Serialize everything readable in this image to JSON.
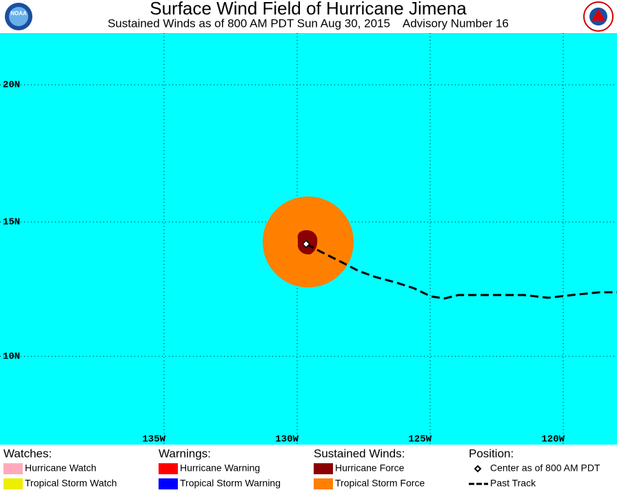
{
  "header": {
    "title": "Surface Wind Field of Hurricane Jimena",
    "subtitle": "Sustained Winds as of 800 AM PDT Sun Aug 30, 2015    Advisory Number 16",
    "logo_left": "NOAA"
  },
  "map": {
    "lat_labels": [
      "20N",
      "15N",
      "10N"
    ],
    "lon_labels": [
      "135W",
      "130W",
      "125W",
      "120W"
    ]
  },
  "legend": {
    "watches": {
      "heading": "Watches:",
      "items": [
        "Hurricane Watch",
        "Tropical Storm Watch"
      ]
    },
    "warnings": {
      "heading": "Warnings:",
      "items": [
        "Hurricane Warning",
        "Tropical Storm Warning"
      ]
    },
    "winds": {
      "heading": "Sustained Winds:",
      "items": [
        "Hurricane Force",
        "Tropical Storm Force"
      ]
    },
    "position": {
      "heading": "Position:",
      "items": [
        "Center as of 800 AM PDT",
        "Past Track"
      ]
    }
  }
}
